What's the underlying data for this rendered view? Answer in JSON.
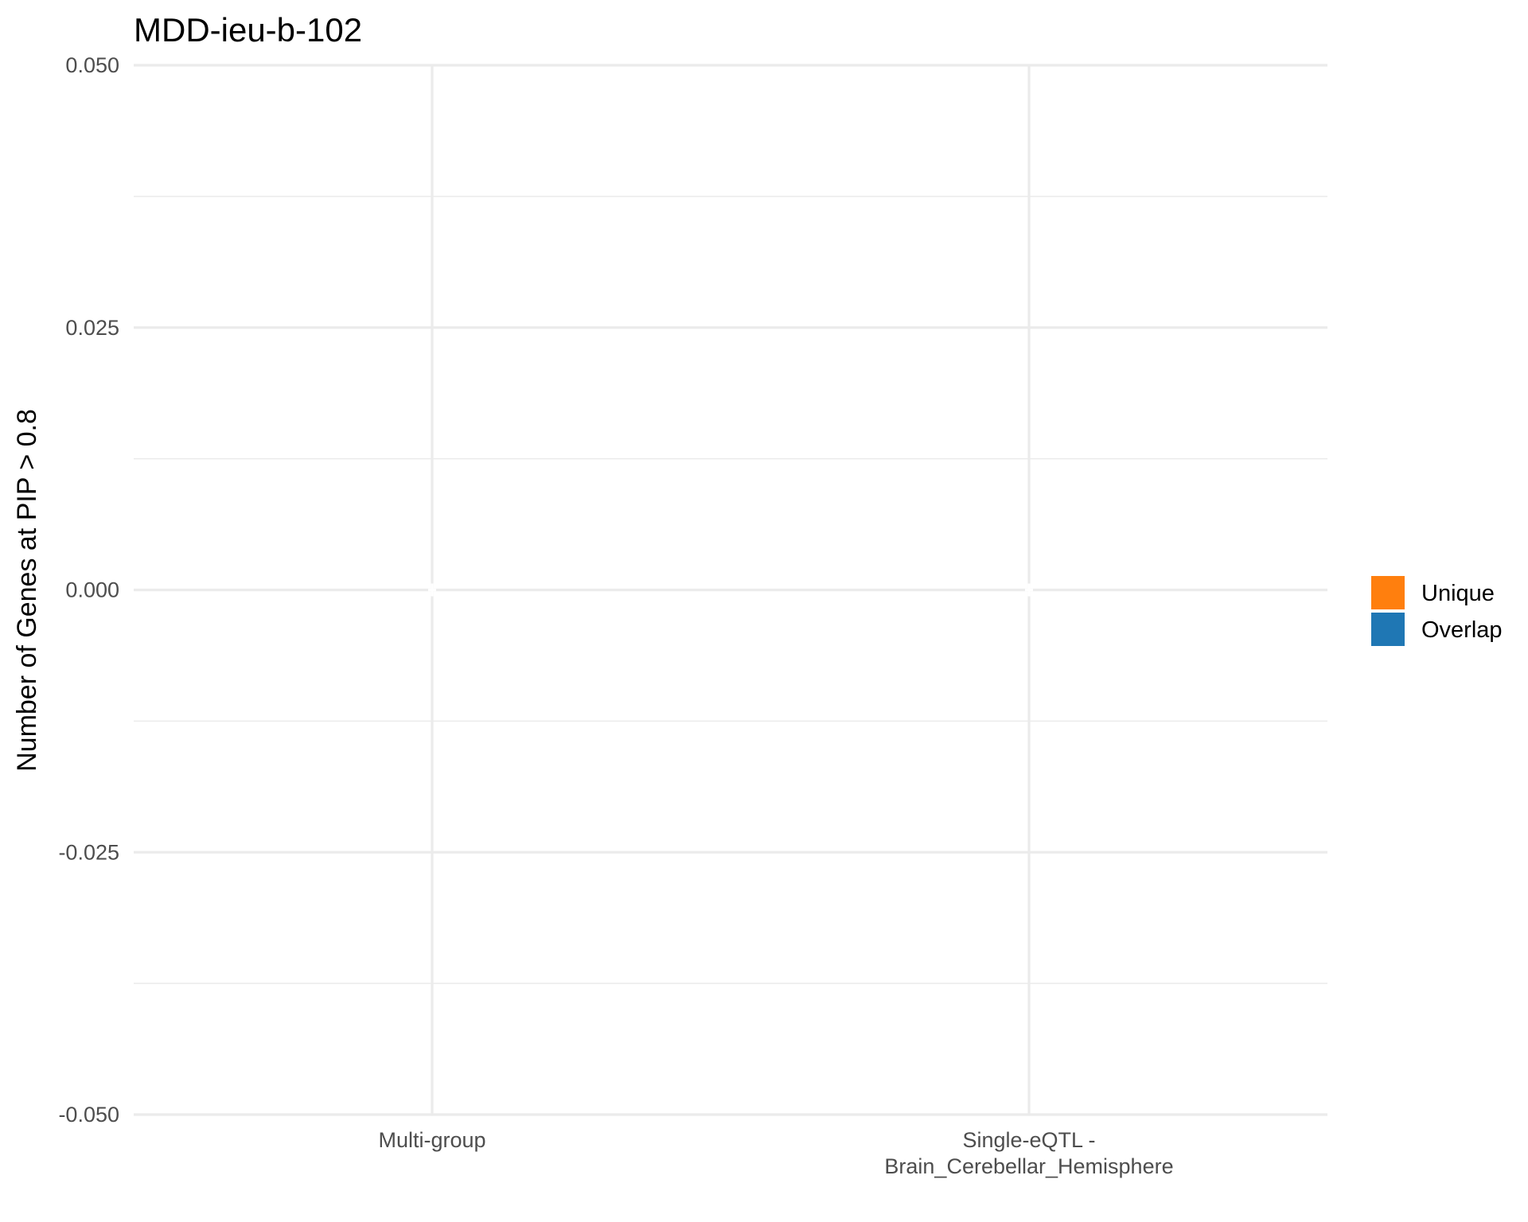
{
  "chart_data": {
    "type": "bar",
    "title": "MDD-ieu-b-102",
    "xlabel": "",
    "ylabel": "Number of Genes at PIP > 0.8",
    "categories": [
      [
        "Multi-group"
      ],
      [
        "Single-eQTL -",
        "Brain_Cerebellar_Hemisphere"
      ]
    ],
    "series": [
      {
        "name": "Unique",
        "color": "#ff7f0e",
        "values": [
          0,
          0
        ]
      },
      {
        "name": "Overlap",
        "color": "#1f77b4",
        "values": [
          0,
          0
        ]
      }
    ],
    "ylim": [
      -0.05,
      0.05
    ],
    "yticks": [
      "-0.050",
      "-0.025",
      "0.000",
      "0.025",
      "0.050"
    ],
    "grid": true,
    "legend_position": "right",
    "stacked": true
  }
}
